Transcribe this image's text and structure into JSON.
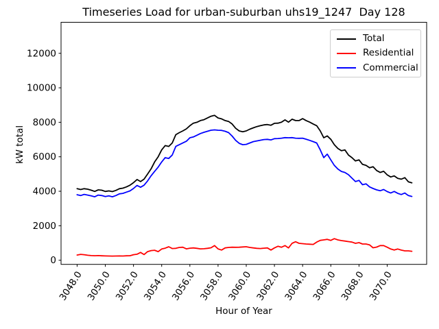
{
  "chart_data": {
    "type": "line",
    "title": "Timeseries Load for urban-suburban uhs19_1247  Day 128",
    "xlabel": "Hour of Year",
    "ylabel": "kW total",
    "grid": false,
    "legend": {
      "position": "upper right",
      "entries": [
        "Total",
        "Residential",
        "Commercial"
      ]
    },
    "x": {
      "start": 3048.0,
      "step": 0.25,
      "count": 96
    },
    "xticks": [
      3048.0,
      3050.0,
      3052.0,
      3054.0,
      3056.0,
      3058.0,
      3060.0,
      3062.0,
      3064.0,
      3066.0,
      3068.0,
      3070.0
    ],
    "yticks": [
      0,
      2000,
      4000,
      6000,
      8000,
      10000,
      12000
    ],
    "xlim": [
      3046.86,
      3072.8
    ],
    "ylim": [
      -240,
      13800
    ],
    "series": [
      {
        "name": "Total",
        "color": "#000000",
        "values": [
          4150,
          4100,
          4150,
          4120,
          4060,
          3990,
          4080,
          4060,
          3990,
          4020,
          3980,
          4050,
          4150,
          4180,
          4250,
          4350,
          4500,
          4680,
          4560,
          4700,
          5000,
          5300,
          5700,
          6000,
          6400,
          6650,
          6600,
          6800,
          7280,
          7400,
          7500,
          7620,
          7800,
          7950,
          8000,
          8100,
          8150,
          8250,
          8350,
          8400,
          8250,
          8200,
          8100,
          8050,
          7900,
          7650,
          7500,
          7450,
          7500,
          7600,
          7680,
          7750,
          7800,
          7850,
          7870,
          7830,
          7940,
          7950,
          8010,
          8140,
          8010,
          8180,
          8100,
          8100,
          8210,
          8100,
          8010,
          7900,
          7800,
          7500,
          7100,
          7210,
          7010,
          6700,
          6480,
          6350,
          6400,
          6100,
          5950,
          5760,
          5820,
          5560,
          5500,
          5360,
          5420,
          5200,
          5090,
          5160,
          4950,
          4830,
          4890,
          4750,
          4700,
          4790,
          4550,
          4490
        ]
      },
      {
        "name": "Residential",
        "color": "#ff0000",
        "values": [
          300,
          340,
          320,
          290,
          270,
          260,
          270,
          255,
          250,
          245,
          240,
          245,
          250,
          245,
          255,
          260,
          320,
          350,
          450,
          330,
          500,
          560,
          580,
          500,
          650,
          700,
          780,
          680,
          690,
          740,
          755,
          660,
          700,
          715,
          690,
          660,
          665,
          690,
          720,
          850,
          660,
          590,
          715,
          740,
          755,
          750,
          755,
          770,
          780,
          740,
          716,
          690,
          680,
          700,
          716,
          590,
          716,
          810,
          755,
          850,
          716,
          980,
          1070,
          980,
          960,
          940,
          930,
          915,
          1050,
          1150,
          1180,
          1210,
          1150,
          1250,
          1180,
          1140,
          1110,
          1080,
          1050,
          980,
          1020,
          940,
          940,
          890,
          720,
          760,
          850,
          850,
          755,
          650,
          590,
          650,
          585,
          545,
          545,
          520
        ]
      },
      {
        "name": "Commercial",
        "color": "#0000ff",
        "values": [
          3800,
          3750,
          3820,
          3780,
          3730,
          3680,
          3780,
          3750,
          3690,
          3730,
          3680,
          3750,
          3850,
          3880,
          3950,
          4020,
          4160,
          4340,
          4230,
          4350,
          4600,
          4900,
          5150,
          5400,
          5700,
          5950,
          5900,
          6100,
          6600,
          6700,
          6800,
          6900,
          7100,
          7150,
          7250,
          7350,
          7420,
          7480,
          7540,
          7560,
          7540,
          7530,
          7480,
          7400,
          7200,
          6950,
          6780,
          6700,
          6720,
          6800,
          6880,
          6920,
          6960,
          7000,
          7010,
          6980,
          7050,
          7060,
          7080,
          7110,
          7100,
          7110,
          7080,
          7070,
          7080,
          7020,
          6950,
          6880,
          6800,
          6400,
          5950,
          6150,
          5820,
          5500,
          5290,
          5150,
          5090,
          4960,
          4760,
          4560,
          4630,
          4380,
          4430,
          4250,
          4160,
          4080,
          4030,
          4100,
          3980,
          3900,
          3990,
          3880,
          3810,
          3900,
          3750,
          3700
        ]
      }
    ]
  }
}
